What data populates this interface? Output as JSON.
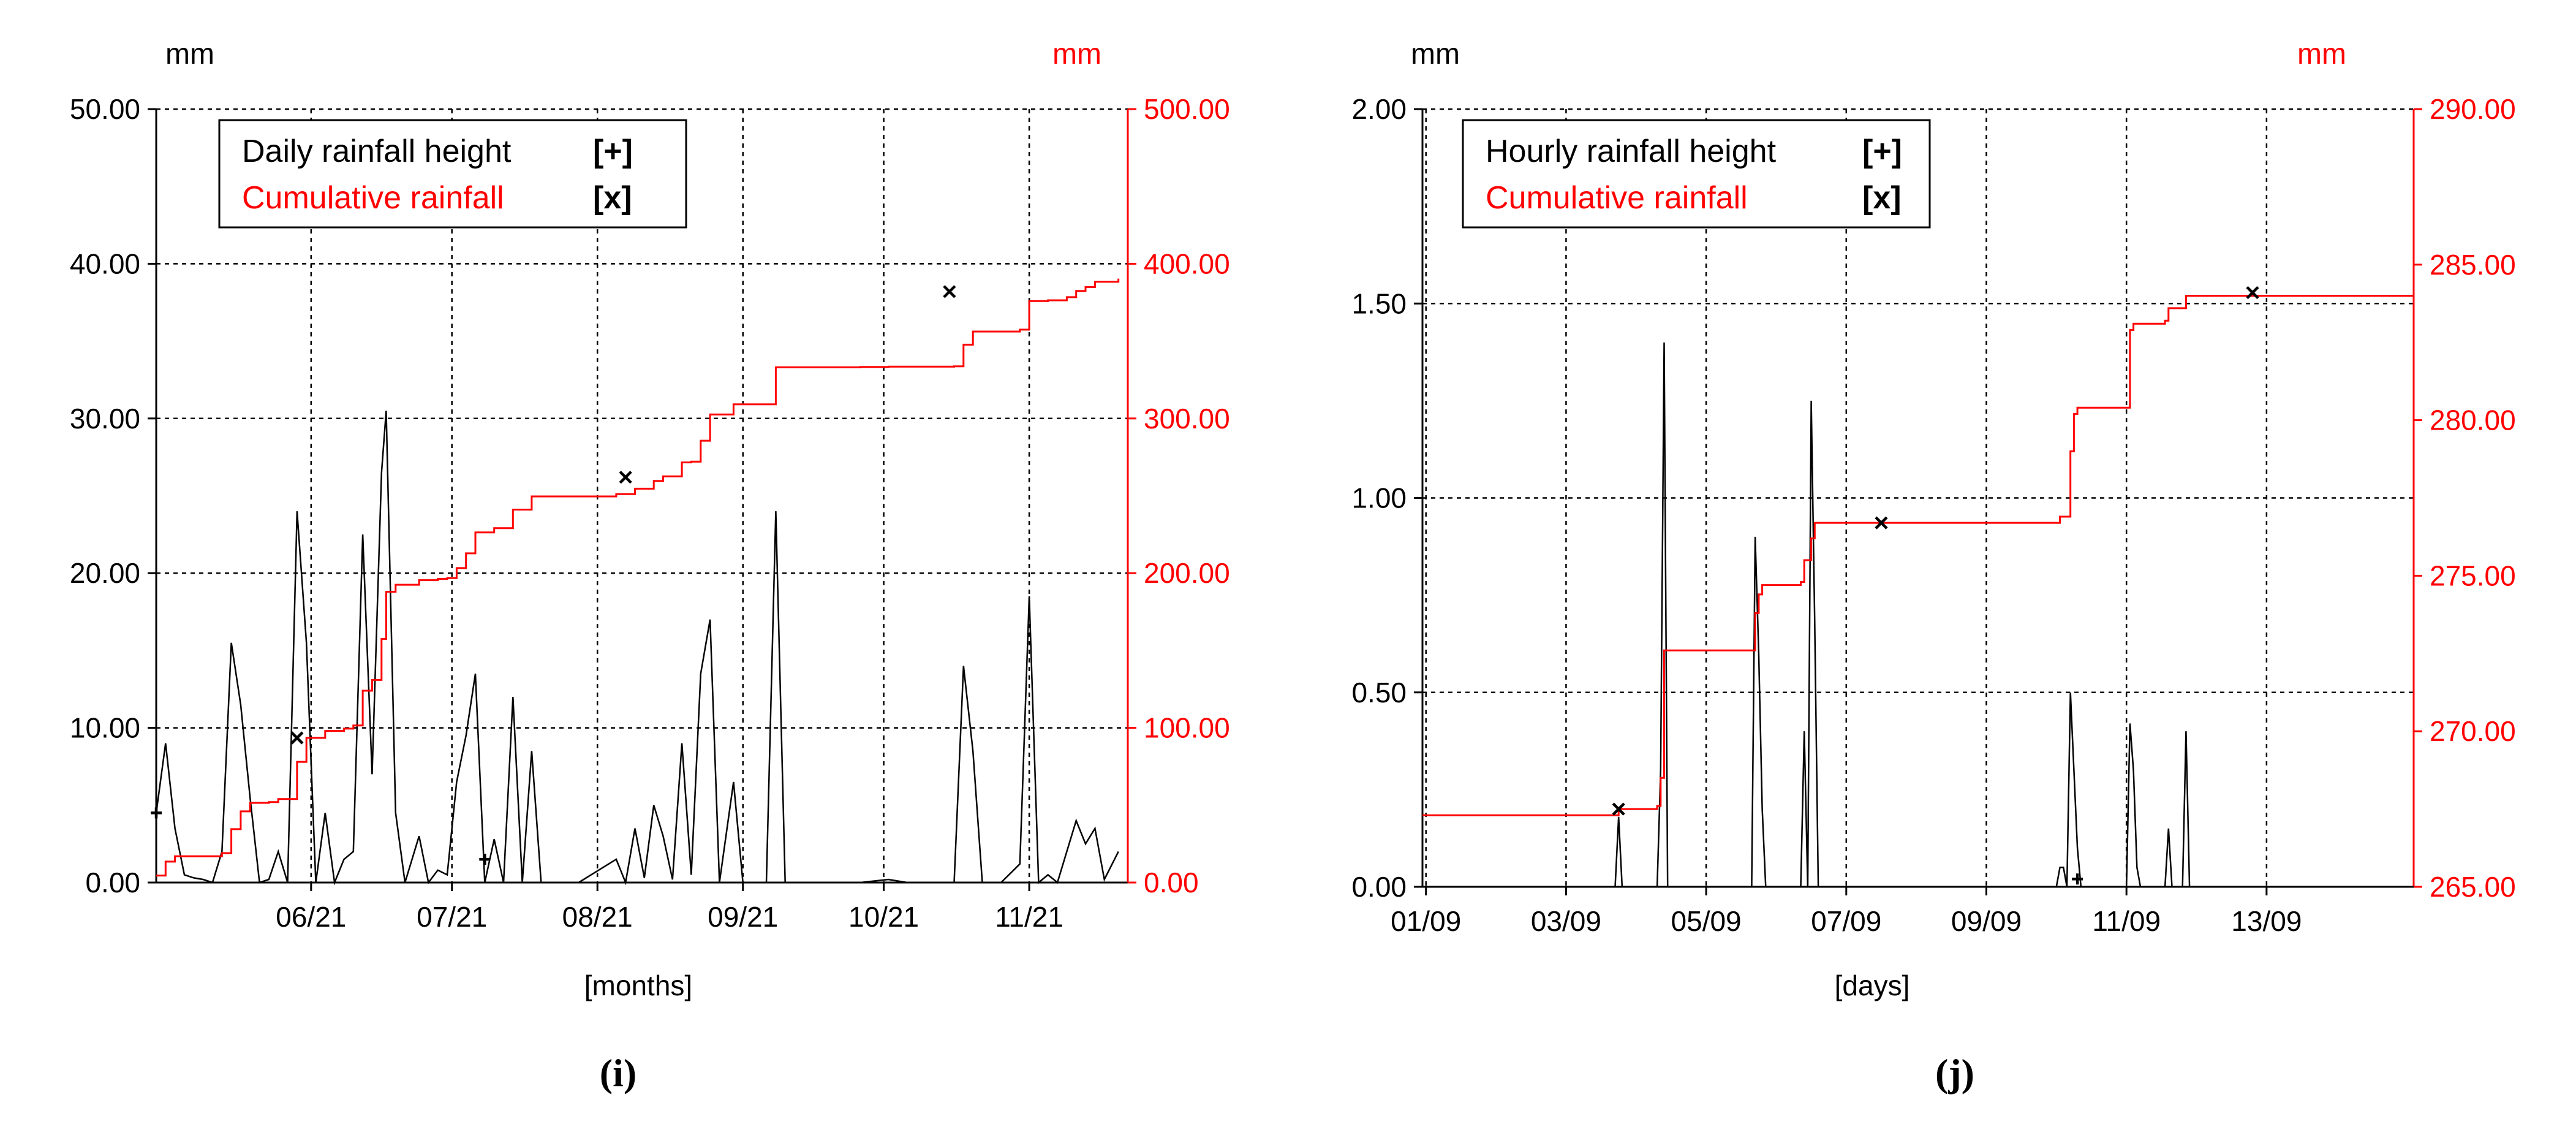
{
  "chart_data": [
    {
      "type": "line",
      "panel_label": "(i)",
      "y_left_unit": "mm",
      "y_right_unit": "mm",
      "xlabel": "[months]",
      "x_ticks": [
        {
          "x": 33,
          "label": "06/21"
        },
        {
          "x": 63,
          "label": "07/21"
        },
        {
          "x": 94,
          "label": "08/21"
        },
        {
          "x": 125,
          "label": "09/21"
        },
        {
          "x": 155,
          "label": "10/21"
        },
        {
          "x": 186,
          "label": "11/21"
        }
      ],
      "xlim": [
        0,
        207
      ],
      "ylim_left": [
        0,
        50
      ],
      "ylim_right": [
        0,
        500
      ],
      "y_left_ticks": [
        "0.00",
        "10.00",
        "20.00",
        "30.00",
        "40.00",
        "50.00"
      ],
      "y_right_ticks": [
        "0.00",
        "100.00",
        "200.00",
        "300.00",
        "400.00",
        "500.00"
      ],
      "grid": true,
      "legend_position": "top-left",
      "legend": [
        {
          "label": "Daily rainfall height",
          "marker": "[+]",
          "color": "#000000"
        },
        {
          "label": "Cumulative rainfall",
          "marker": "[x]",
          "color": "#ff0000"
        }
      ],
      "series": [
        {
          "name": "Daily rainfall height",
          "axis": "left",
          "color": "#000000",
          "points": [
            [
              0,
              4.5
            ],
            [
              2,
              9
            ],
            [
              4,
              3.5
            ],
            [
              6,
              0.5
            ],
            [
              8,
              0.3
            ],
            [
              10,
              0.2
            ],
            [
              12,
              0
            ],
            [
              14,
              2
            ],
            [
              16,
              15.5
            ],
            [
              18,
              11.5
            ],
            [
              20,
              5.5
            ],
            [
              22,
              0
            ],
            [
              24,
              0.2
            ],
            [
              26,
              2
            ],
            [
              28,
              0
            ],
            [
              30,
              24
            ],
            [
              32,
              15.5
            ],
            [
              34,
              0
            ],
            [
              36,
              4.5
            ],
            [
              38,
              0
            ],
            [
              40,
              1.5
            ],
            [
              42,
              2
            ],
            [
              44,
              22.5
            ],
            [
              46,
              7
            ],
            [
              48,
              26.5
            ],
            [
              49,
              30.5
            ],
            [
              51,
              4.5
            ],
            [
              53,
              0
            ],
            [
              56,
              3
            ],
            [
              58,
              0
            ],
            [
              60,
              0.8
            ],
            [
              62,
              0.5
            ],
            [
              64,
              6.5
            ],
            [
              66,
              9.5
            ],
            [
              68,
              13.5
            ],
            [
              70,
              0
            ],
            [
              72,
              2.8
            ],
            [
              74,
              0
            ],
            [
              76,
              12
            ],
            [
              78,
              0
            ],
            [
              80,
              8.5
            ],
            [
              82,
              0
            ],
            [
              86,
              0
            ],
            [
              90,
              0
            ],
            [
              98,
              1.5
            ],
            [
              100,
              0
            ],
            [
              102,
              3.5
            ],
            [
              104,
              0.3
            ],
            [
              106,
              5
            ],
            [
              108,
              3
            ],
            [
              110,
              0.2
            ],
            [
              112,
              9
            ],
            [
              114,
              0.5
            ],
            [
              116,
              13.5
            ],
            [
              118,
              17
            ],
            [
              120,
              0
            ],
            [
              123,
              6.5
            ],
            [
              125,
              0
            ],
            [
              130,
              0
            ],
            [
              132,
              24
            ],
            [
              134,
              0
            ],
            [
              140,
              0
            ],
            [
              150,
              0
            ],
            [
              156,
              0.2
            ],
            [
              160,
              0
            ],
            [
              170,
              0
            ],
            [
              172,
              14
            ],
            [
              174,
              8.5
            ],
            [
              176,
              0
            ],
            [
              180,
              0
            ],
            [
              184,
              1.2
            ],
            [
              186,
              18.5
            ],
            [
              188,
              0
            ],
            [
              190,
              0.5
            ],
            [
              192,
              0
            ],
            [
              194,
              2
            ],
            [
              196,
              4
            ],
            [
              198,
              2.5
            ],
            [
              200,
              3.5
            ],
            [
              202,
              0.2
            ],
            [
              205,
              2
            ]
          ]
        },
        {
          "name": "Cumulative rainfall",
          "axis": "right",
          "color": "#ff0000",
          "step": true,
          "points": [
            [
              0,
              4.5
            ],
            [
              2,
              13.5
            ],
            [
              4,
              17
            ],
            [
              14,
              19
            ],
            [
              16,
              34.5
            ],
            [
              18,
              46
            ],
            [
              20,
              51.5
            ],
            [
              24,
              52
            ],
            [
              26,
              54
            ],
            [
              30,
              78
            ],
            [
              32,
              93.5
            ],
            [
              36,
              98
            ],
            [
              40,
              99.5
            ],
            [
              42,
              101.5
            ],
            [
              44,
              124
            ],
            [
              46,
              131
            ],
            [
              48,
              157.5
            ],
            [
              49,
              188
            ],
            [
              51,
              192.5
            ],
            [
              56,
              195.5
            ],
            [
              60,
              196.3
            ],
            [
              62,
              196.8
            ],
            [
              64,
              203.3
            ],
            [
              66,
              212.8
            ],
            [
              68,
              226.3
            ],
            [
              72,
              229.1
            ],
            [
              76,
              241.1
            ],
            [
              80,
              249.6
            ],
            [
              98,
              251.1
            ],
            [
              102,
              254.6
            ],
            [
              106,
              259.6
            ],
            [
              108,
              262.6
            ],
            [
              112,
              271.6
            ],
            [
              114,
              272.1
            ],
            [
              116,
              285.6
            ],
            [
              118,
              302.6
            ],
            [
              123,
              309.1
            ],
            [
              132,
              333.1
            ],
            [
              150,
              333.3
            ],
            [
              156,
              333.5
            ],
            [
              170,
              333.7
            ],
            [
              172,
              347.7
            ],
            [
              174,
              356.2
            ],
            [
              184,
              357.4
            ],
            [
              186,
              375.9
            ],
            [
              190,
              376.4
            ],
            [
              194,
              378.4
            ],
            [
              196,
              382.4
            ],
            [
              198,
              384.9
            ],
            [
              200,
              388.4
            ],
            [
              205,
              390.4
            ]
          ]
        }
      ],
      "markers": [
        {
          "series": "Daily rainfall height",
          "symbol": "+",
          "points": [
            [
              0,
              4.5
            ],
            [
              70,
              1.5
            ]
          ]
        },
        {
          "series": "Cumulative rainfall",
          "symbol": "x",
          "points": [
            [
              30,
              93.5
            ],
            [
              100,
              262
            ],
            [
              169,
              382
            ]
          ]
        }
      ]
    },
    {
      "type": "line",
      "panel_label": "(j)",
      "y_left_unit": "mm",
      "y_right_unit": "mm",
      "xlabel": "[days]",
      "x_ticks": [
        {
          "x": 0,
          "label": "01/09"
        },
        {
          "x": 2,
          "label": "03/09"
        },
        {
          "x": 4,
          "label": "05/09"
        },
        {
          "x": 6,
          "label": "07/09"
        },
        {
          "x": 8,
          "label": "09/09"
        },
        {
          "x": 10,
          "label": "11/09"
        },
        {
          "x": 12,
          "label": "13/09"
        }
      ],
      "xlim": [
        -0.05,
        14.1
      ],
      "ylim_left": [
        0,
        2
      ],
      "ylim_right": [
        265,
        290
      ],
      "y_left_ticks": [
        "0.00",
        "0.50",
        "1.00",
        "1.50",
        "2.00"
      ],
      "y_right_ticks": [
        "265.00",
        "270.00",
        "275.00",
        "280.00",
        "285.00",
        "290.00"
      ],
      "grid": true,
      "legend_position": "top-left",
      "legend": [
        {
          "label": "Hourly rainfall height",
          "marker": "[+]",
          "color": "#000000"
        },
        {
          "label": "Cumulative rainfall",
          "marker": "[x]",
          "color": "#ff0000"
        }
      ],
      "series": [
        {
          "name": "Hourly rainfall height",
          "axis": "left",
          "color": "#000000",
          "points": [
            [
              0,
              0
            ],
            [
              2.7,
              0
            ],
            [
              2.75,
              0.18
            ],
            [
              2.8,
              0
            ],
            [
              3.3,
              0
            ],
            [
              3.35,
              0.3
            ],
            [
              3.4,
              1.4
            ],
            [
              3.45,
              0
            ],
            [
              4.65,
              0
            ],
            [
              4.7,
              0.9
            ],
            [
              4.75,
              0.6
            ],
            [
              4.8,
              0.2
            ],
            [
              4.85,
              0
            ],
            [
              5.35,
              0
            ],
            [
              5.4,
              0.4
            ],
            [
              5.45,
              0
            ],
            [
              5.5,
              1.25
            ],
            [
              5.55,
              0.68
            ],
            [
              5.6,
              0
            ],
            [
              9.0,
              0
            ],
            [
              9.05,
              0.05
            ],
            [
              9.1,
              0.05
            ],
            [
              9.15,
              0
            ],
            [
              9.2,
              0.5
            ],
            [
              9.25,
              0.3
            ],
            [
              9.3,
              0.1
            ],
            [
              9.35,
              0
            ],
            [
              10.0,
              0
            ],
            [
              10.05,
              0.42
            ],
            [
              10.1,
              0.3
            ],
            [
              10.15,
              0.05
            ],
            [
              10.2,
              0
            ],
            [
              10.55,
              0
            ],
            [
              10.6,
              0.15
            ],
            [
              10.65,
              0
            ],
            [
              10.8,
              0
            ],
            [
              10.85,
              0.4
            ],
            [
              10.9,
              0
            ],
            [
              14.1,
              0
            ]
          ]
        },
        {
          "name": "Cumulative rainfall",
          "axis": "right",
          "color": "#ff0000",
          "step": true,
          "points": [
            [
              -0.05,
              267.3
            ],
            [
              2.7,
              267.3
            ],
            [
              2.75,
              267.5
            ],
            [
              3.3,
              267.6
            ],
            [
              3.35,
              268.5
            ],
            [
              3.4,
              272.6
            ],
            [
              4.65,
              272.6
            ],
            [
              4.7,
              273.8
            ],
            [
              4.75,
              274.4
            ],
            [
              4.8,
              274.7
            ],
            [
              5.35,
              274.8
            ],
            [
              5.4,
              275.5
            ],
            [
              5.5,
              276.2
            ],
            [
              5.55,
              276.7
            ],
            [
              9.0,
              276.7
            ],
            [
              9.05,
              276.9
            ],
            [
              9.2,
              279.0
            ],
            [
              9.25,
              280.2
            ],
            [
              9.3,
              280.4
            ],
            [
              10.0,
              280.4
            ],
            [
              10.05,
              282.9
            ],
            [
              10.1,
              283.1
            ],
            [
              10.55,
              283.2
            ],
            [
              10.6,
              283.6
            ],
            [
              10.85,
              284.0
            ],
            [
              14.1,
              284.0
            ]
          ]
        }
      ],
      "markers": [
        {
          "series": "Hourly rainfall height",
          "symbol": "+",
          "points": [
            [
              9.3,
              0.02
            ]
          ]
        },
        {
          "series": "Cumulative rainfall",
          "symbol": "x",
          "points": [
            [
              2.75,
              267.5
            ],
            [
              6.5,
              276.7
            ],
            [
              11.8,
              284.1
            ]
          ]
        }
      ]
    }
  ]
}
